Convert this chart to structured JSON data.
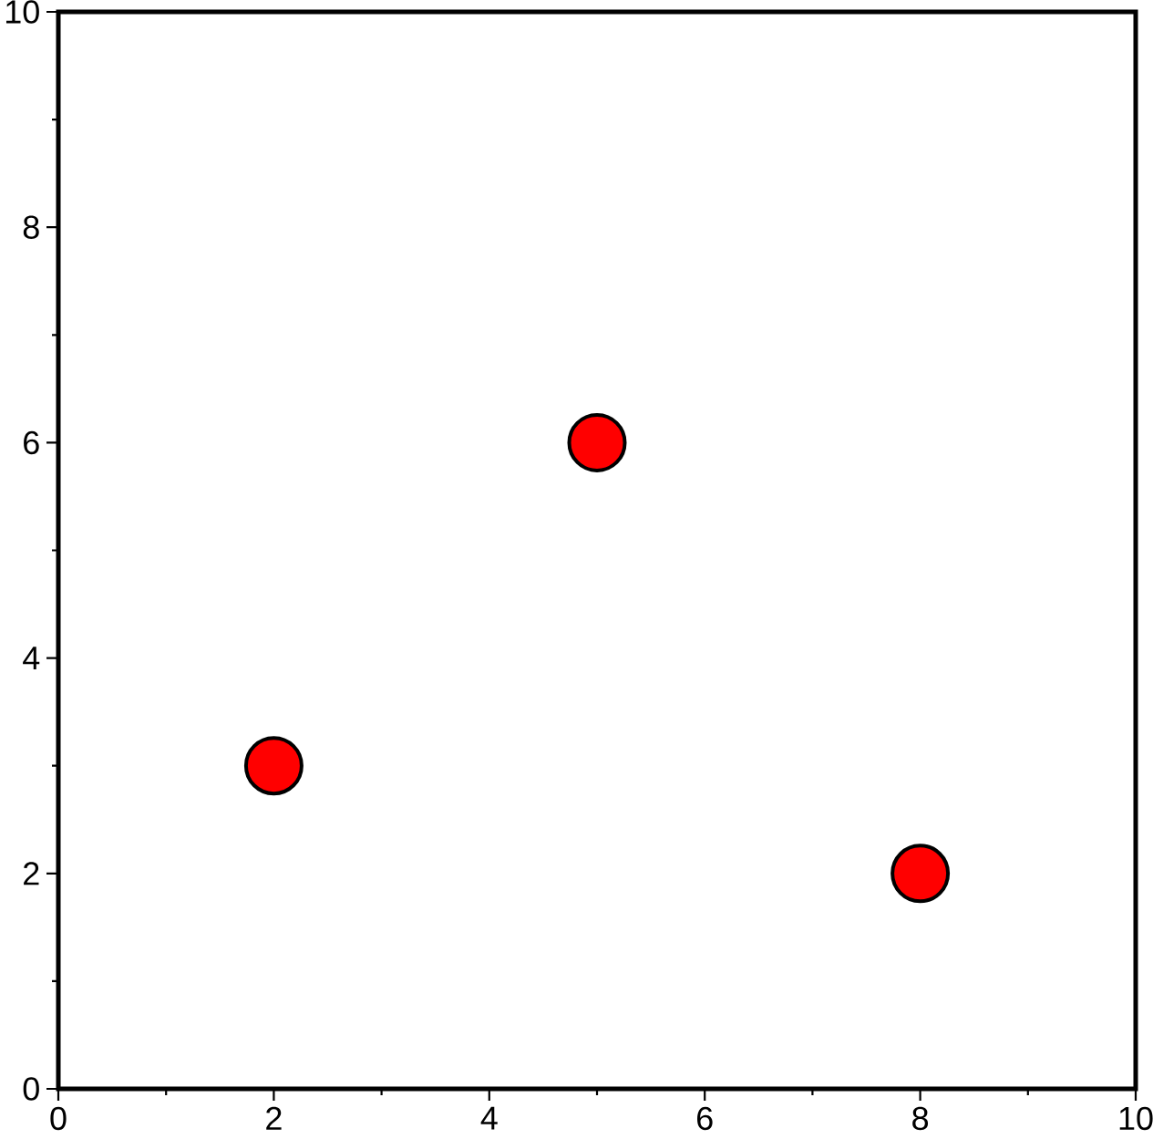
{
  "chart_data": {
    "type": "scatter",
    "x": [
      2,
      5,
      8
    ],
    "values": [
      3,
      6,
      2
    ],
    "color": "#ff0000",
    "marker": "circle",
    "xlim": [
      0,
      10
    ],
    "ylim": [
      0,
      10
    ],
    "xticks": [
      0,
      {
        "value": 1,
        "label": null
      },
      2,
      {
        "value": 3,
        "label": null
      },
      4,
      {
        "value": 5,
        "label": null
      },
      6,
      {
        "value": 7,
        "label": null
      },
      8,
      {
        "value": 9,
        "label": null
      },
      10
    ],
    "yticks": [
      0,
      {
        "value": 1,
        "label": null
      },
      2,
      {
        "value": 3,
        "label": null
      },
      4,
      {
        "value": 5,
        "label": null
      },
      6,
      {
        "value": 7,
        "label": null
      },
      8,
      {
        "value": 9,
        "label": null
      },
      10
    ]
  }
}
